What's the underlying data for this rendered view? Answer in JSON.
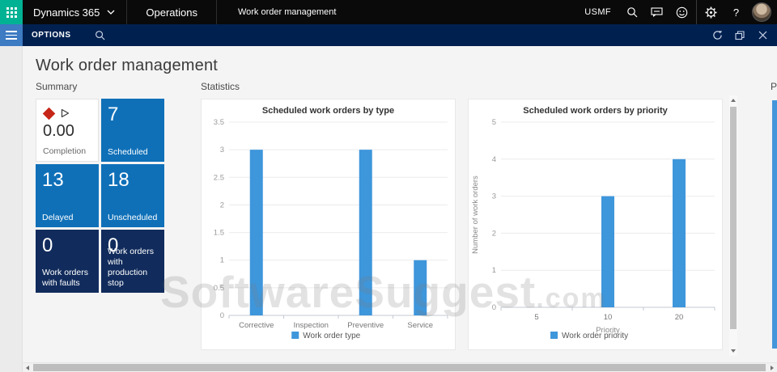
{
  "topbar": {
    "product": "Dynamics 365",
    "app": "Operations",
    "page_tab": "Work order management",
    "company": "USMF",
    "icons": [
      "waffle-icon",
      "chevron-down-icon",
      "search-icon",
      "feedback-icon",
      "smiley-icon",
      "gear-icon",
      "help-icon",
      "user-avatar"
    ]
  },
  "navbar": {
    "options_label": "OPTIONS",
    "icons": [
      "hamburger-icon",
      "search-icon",
      "refresh-icon",
      "restore-window-icon",
      "close-icon"
    ]
  },
  "page": {
    "title": "Work order management"
  },
  "summary": {
    "heading": "Summary",
    "tiles": [
      {
        "value": "0.00",
        "label": "Completion",
        "icons": [
          "red-diamond-icon",
          "play-icon"
        ]
      },
      {
        "value": "7",
        "label": "Scheduled"
      },
      {
        "value": "13",
        "label": "Delayed"
      },
      {
        "value": "18",
        "label": "Unscheduled"
      },
      {
        "value": "0",
        "label": "Work orders with faults"
      },
      {
        "value": "0",
        "label": "Work orders with production stop"
      }
    ]
  },
  "statistics": {
    "heading": "Statistics"
  },
  "next_section": {
    "heading_partial": "P"
  },
  "watermark": {
    "text": "SoftwareSuggest",
    "suffix": ".com"
  },
  "colors": {
    "accent_tile_blue": "#0F70B8",
    "tile_dark_navy": "#112C5C",
    "navbar_navy": "#002050",
    "hamburger_blue": "#3D7BC2",
    "waffle_teal": "#00B294",
    "bar_blue": "#3E96DB",
    "kpi_diamond_red": "#C62617"
  },
  "chart_data": [
    {
      "type": "bar",
      "title": "Scheduled work orders by type",
      "categories": [
        "Corrective",
        "Inspection",
        "Preventive",
        "Service"
      ],
      "values": [
        3,
        0,
        3,
        1
      ],
      "xlabel": "",
      "ylabel": "",
      "ylim": [
        0,
        3.5
      ],
      "ytick_step": 0.5,
      "grid": true,
      "legend": [
        "Work order type"
      ],
      "legend_position": "bottom",
      "bar_color": "#3E96DB"
    },
    {
      "type": "bar",
      "title": "Scheduled work orders by priority",
      "categories": [
        "5",
        "10",
        "20"
      ],
      "values": [
        0,
        3,
        4
      ],
      "xlabel": "Priority",
      "ylabel": "Number of work orders",
      "ylim": [
        0,
        5
      ],
      "ytick_step": 1,
      "grid": true,
      "legend": [
        "Work order priority"
      ],
      "legend_position": "bottom",
      "bar_color": "#3E96DB"
    }
  ]
}
